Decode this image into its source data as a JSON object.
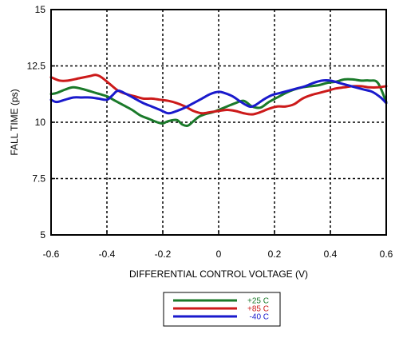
{
  "chart_data": {
    "type": "line",
    "title": "",
    "xlabel": "DIFFERENTIAL CONTROL VOLTAGE (V)",
    "ylabel": "FALL TIME (ps)",
    "xlim": [
      -0.6,
      0.6
    ],
    "ylim": [
      5,
      15
    ],
    "x_ticks": [
      -0.6,
      -0.4,
      -0.2,
      0,
      0.2,
      0.4,
      0.6
    ],
    "x_tick_labels": [
      "-0.6",
      "-0.4",
      "-0.2",
      "0",
      "0.2",
      "0.4",
      "0.6"
    ],
    "y_ticks": [
      5,
      7.5,
      10,
      12.5,
      15
    ],
    "y_tick_labels": [
      "5",
      "7.5",
      "10",
      "12.5",
      "15"
    ],
    "grid": true,
    "grid_style": "dashed",
    "legend_position": "below",
    "series": [
      {
        "name": "+25 C",
        "color": "#1a7a2a",
        "x": [
          -0.6,
          -0.58,
          -0.55,
          -0.52,
          -0.48,
          -0.44,
          -0.4,
          -0.37,
          -0.34,
          -0.31,
          -0.28,
          -0.25,
          -0.22,
          -0.2,
          -0.18,
          -0.15,
          -0.13,
          -0.11,
          -0.09,
          -0.07,
          -0.05,
          -0.02,
          0,
          0.03,
          0.06,
          0.09,
          0.12,
          0.15,
          0.18,
          0.21,
          0.24,
          0.27,
          0.3,
          0.33,
          0.36,
          0.39,
          0.42,
          0.45,
          0.48,
          0.51,
          0.54,
          0.57,
          0.6
        ],
        "y": [
          11.25,
          11.3,
          11.45,
          11.55,
          11.45,
          11.3,
          11.15,
          10.95,
          10.75,
          10.55,
          10.3,
          10.15,
          10.0,
          9.95,
          10.05,
          10.1,
          9.9,
          9.85,
          10.05,
          10.25,
          10.35,
          10.45,
          10.55,
          10.7,
          10.85,
          10.95,
          10.7,
          10.65,
          10.9,
          11.1,
          11.3,
          11.45,
          11.55,
          11.6,
          11.65,
          11.75,
          11.8,
          11.9,
          11.9,
          11.85,
          11.85,
          11.75,
          10.9
        ]
      },
      {
        "name": "+85 C",
        "color": "#cc1a1a",
        "x": [
          -0.6,
          -0.57,
          -0.54,
          -0.5,
          -0.46,
          -0.44,
          -0.42,
          -0.39,
          -0.36,
          -0.33,
          -0.3,
          -0.27,
          -0.24,
          -0.21,
          -0.18,
          -0.15,
          -0.12,
          -0.09,
          -0.06,
          -0.03,
          0,
          0.03,
          0.06,
          0.09,
          0.12,
          0.15,
          0.18,
          0.21,
          0.24,
          0.27,
          0.3,
          0.33,
          0.36,
          0.39,
          0.42,
          0.45,
          0.48,
          0.51,
          0.54,
          0.57,
          0.6
        ],
        "y": [
          12.0,
          11.85,
          11.85,
          11.95,
          12.05,
          12.1,
          12.0,
          11.7,
          11.4,
          11.25,
          11.15,
          11.05,
          11.05,
          11.0,
          10.95,
          10.85,
          10.7,
          10.5,
          10.4,
          10.45,
          10.5,
          10.55,
          10.5,
          10.4,
          10.35,
          10.45,
          10.6,
          10.7,
          10.7,
          10.8,
          11.05,
          11.2,
          11.3,
          11.4,
          11.5,
          11.55,
          11.6,
          11.6,
          11.55,
          11.55,
          11.6
        ]
      },
      {
        "name": "-40 C",
        "color": "#1a1acc",
        "x": [
          -0.6,
          -0.58,
          -0.55,
          -0.52,
          -0.49,
          -0.46,
          -0.43,
          -0.4,
          -0.38,
          -0.36,
          -0.33,
          -0.3,
          -0.27,
          -0.24,
          -0.21,
          -0.18,
          -0.15,
          -0.12,
          -0.09,
          -0.06,
          -0.03,
          0,
          0.02,
          0.05,
          0.08,
          0.11,
          0.13,
          0.16,
          0.19,
          0.22,
          0.25,
          0.28,
          0.31,
          0.34,
          0.37,
          0.4,
          0.43,
          0.46,
          0.49,
          0.52,
          0.55,
          0.58,
          0.6
        ],
        "y": [
          11.0,
          10.9,
          11.0,
          11.1,
          11.1,
          11.1,
          11.05,
          11.0,
          11.2,
          11.4,
          11.25,
          11.05,
          10.85,
          10.7,
          10.55,
          10.4,
          10.5,
          10.65,
          10.85,
          11.05,
          11.25,
          11.35,
          11.3,
          11.15,
          10.9,
          10.7,
          10.75,
          11.0,
          11.2,
          11.3,
          11.4,
          11.5,
          11.6,
          11.75,
          11.85,
          11.85,
          11.75,
          11.65,
          11.55,
          11.45,
          11.35,
          11.1,
          10.85
        ]
      }
    ]
  }
}
